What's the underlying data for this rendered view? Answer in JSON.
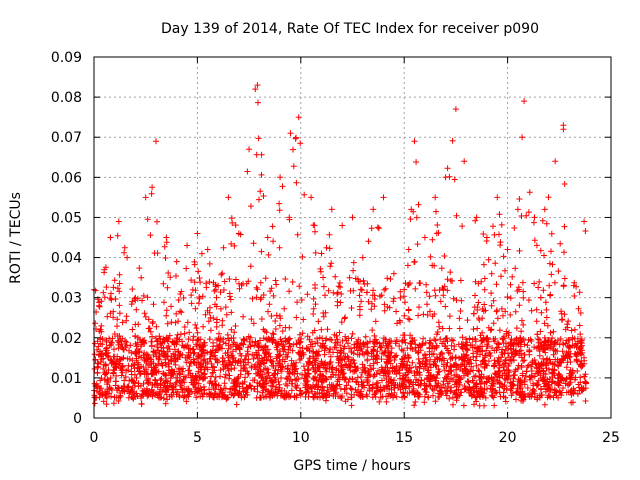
{
  "chart_data": {
    "type": "scatter",
    "title": "Day 139 of 2014, Rate Of TEC Index for receiver p090",
    "xlabel": "GPS time / hours",
    "ylabel": "ROTI / TECUs",
    "xlim": [
      0,
      25
    ],
    "ylim": [
      0,
      0.09
    ],
    "xticks": [
      0,
      5,
      10,
      15,
      20,
      25
    ],
    "yticks": [
      0,
      0.01,
      0.02,
      0.03,
      0.04,
      0.05,
      0.06,
      0.07,
      0.08,
      0.09
    ],
    "xtick_labels": [
      "0",
      "5",
      "10",
      "15",
      "20",
      "25"
    ],
    "ytick_labels": [
      "0",
      "0.01",
      "0.02",
      "0.03",
      "0.04",
      "0.05",
      "0.06",
      "0.07",
      "0.08",
      "0.09"
    ],
    "grid": true,
    "marker": "plus",
    "color": "#ff0000",
    "x_range_of_data": [
      0,
      23.8
    ],
    "typical_band": [
      0.005,
      0.02
    ],
    "envelope": [
      {
        "x": 0.0,
        "ymax": 0.032
      },
      {
        "x": 0.5,
        "ymax": 0.037
      },
      {
        "x": 0.8,
        "ymax": 0.045
      },
      {
        "x": 1.2,
        "ymax": 0.049
      },
      {
        "x": 1.6,
        "ymax": 0.04
      },
      {
        "x": 2.0,
        "ymax": 0.03
      },
      {
        "x": 2.5,
        "ymax": 0.055
      },
      {
        "x": 3.0,
        "ymax": 0.069
      },
      {
        "x": 3.5,
        "ymax": 0.045
      },
      {
        "x": 4.0,
        "ymax": 0.039
      },
      {
        "x": 4.5,
        "ymax": 0.043
      },
      {
        "x": 5.0,
        "ymax": 0.046
      },
      {
        "x": 5.5,
        "ymax": 0.042
      },
      {
        "x": 6.0,
        "ymax": 0.033
      },
      {
        "x": 6.5,
        "ymax": 0.055
      },
      {
        "x": 7.0,
        "ymax": 0.046
      },
      {
        "x": 7.5,
        "ymax": 0.067
      },
      {
        "x": 7.9,
        "ymax": 0.083
      },
      {
        "x": 8.4,
        "ymax": 0.045
      },
      {
        "x": 9.0,
        "ymax": 0.06
      },
      {
        "x": 9.5,
        "ymax": 0.071
      },
      {
        "x": 9.9,
        "ymax": 0.075
      },
      {
        "x": 10.5,
        "ymax": 0.055
      },
      {
        "x": 11.0,
        "ymax": 0.041
      },
      {
        "x": 11.5,
        "ymax": 0.052
      },
      {
        "x": 12.0,
        "ymax": 0.048
      },
      {
        "x": 12.5,
        "ymax": 0.05
      },
      {
        "x": 13.0,
        "ymax": 0.04
      },
      {
        "x": 13.5,
        "ymax": 0.052
      },
      {
        "x": 14.0,
        "ymax": 0.055
      },
      {
        "x": 14.5,
        "ymax": 0.036
      },
      {
        "x": 15.0,
        "ymax": 0.032
      },
      {
        "x": 15.5,
        "ymax": 0.069
      },
      {
        "x": 16.0,
        "ymax": 0.045
      },
      {
        "x": 16.5,
        "ymax": 0.055
      },
      {
        "x": 17.0,
        "ymax": 0.06
      },
      {
        "x": 17.5,
        "ymax": 0.077
      },
      {
        "x": 17.9,
        "ymax": 0.064
      },
      {
        "x": 18.5,
        "ymax": 0.05
      },
      {
        "x": 19.0,
        "ymax": 0.045
      },
      {
        "x": 19.5,
        "ymax": 0.055
      },
      {
        "x": 20.0,
        "ymax": 0.042
      },
      {
        "x": 20.5,
        "ymax": 0.052
      },
      {
        "x": 20.8,
        "ymax": 0.079
      },
      {
        "x": 21.3,
        "ymax": 0.05
      },
      {
        "x": 21.8,
        "ymax": 0.052
      },
      {
        "x": 22.3,
        "ymax": 0.064
      },
      {
        "x": 22.7,
        "ymax": 0.073
      },
      {
        "x": 23.2,
        "ymax": 0.033
      },
      {
        "x": 23.7,
        "ymax": 0.049
      }
    ],
    "peak_points": [
      {
        "x": 3.0,
        "y": 0.069
      },
      {
        "x": 7.9,
        "y": 0.083
      },
      {
        "x": 7.8,
        "y": 0.082
      },
      {
        "x": 9.9,
        "y": 0.075
      },
      {
        "x": 17.5,
        "y": 0.077
      },
      {
        "x": 20.8,
        "y": 0.079
      },
      {
        "x": 22.7,
        "y": 0.073
      },
      {
        "x": 22.7,
        "y": 0.072
      },
      {
        "x": 15.5,
        "y": 0.069
      },
      {
        "x": 20.7,
        "y": 0.07
      }
    ]
  }
}
